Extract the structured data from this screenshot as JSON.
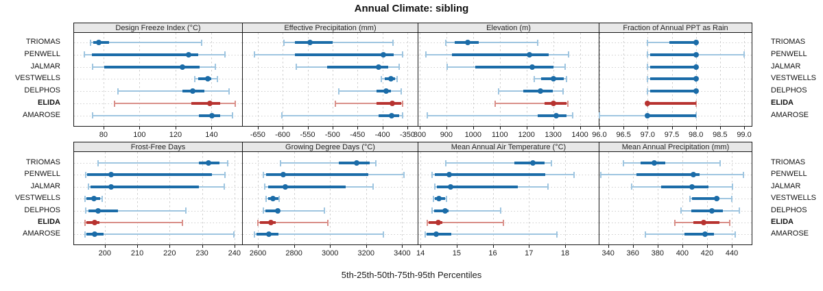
{
  "title": "Annual Climate: sibling",
  "caption": "5th-25th-50th-75th-95th Percentiles",
  "locations": [
    "TRIOMAS",
    "PENWELL",
    "JALMAR",
    "VESTWELLS",
    "DELPHOS",
    "ELIDA",
    "AMAROSE"
  ],
  "highlight_location": "ELIDA",
  "colors": {
    "blue": "#1b6ca8",
    "blue_light": "#9ec5e0",
    "red": "#b73330",
    "red_light": "#d98f89",
    "grid": "#cdcdcd",
    "header_bg": "#e8e8e8",
    "border": "#141414",
    "text": "#1a1a1a"
  },
  "chart_data": [
    {
      "type": "percentile_dot_whisker",
      "title": "Design Freeze Index (°C)",
      "row": 0,
      "col": 0,
      "percentiles": [
        5,
        25,
        50,
        75,
        95
      ],
      "xlim": [
        63.7,
        157.7
      ],
      "ticks": [
        80,
        100,
        120,
        140
      ],
      "tick_labels": [
        "80",
        "100",
        "120",
        "140"
      ],
      "values": [
        [
          73,
          74.5,
          77.5,
          83,
          134.3
        ],
        [
          69.5,
          73.5,
          127.3,
          132.5,
          147.3
        ],
        [
          74,
          80.5,
          124,
          133.4,
          142.2
        ],
        [
          130.5,
          132.4,
          137.9,
          139.7,
          143.4
        ],
        [
          88,
          124,
          129.5,
          135.9,
          149.8
        ],
        [
          86.1,
          128.9,
          139,
          144.8,
          153
        ],
        [
          74,
          133,
          140.3,
          144.8,
          151.7
        ]
      ]
    },
    {
      "type": "percentile_dot_whisker",
      "title": "Effective Precipitation (mm)",
      "row": 0,
      "col": 1,
      "percentiles": [
        5,
        25,
        50,
        75,
        95
      ],
      "xlim": [
        -680,
        -328
      ],
      "ticks": [
        -650,
        -600,
        -550,
        -500,
        -450,
        -400,
        -350
      ],
      "tick_labels": [
        "-650",
        "-600",
        "-550",
        "-500",
        "-450",
        "-400",
        "-350"
      ],
      "values": [
        [
          -597,
          -576,
          -545,
          -500,
          -379
        ],
        [
          -657,
          -575,
          -398,
          -377,
          -360
        ],
        [
          -573,
          -511,
          -408,
          -389,
          -366
        ],
        [
          -402,
          -395,
          -383,
          -375,
          -371
        ],
        [
          -487,
          -412,
          -392,
          -383,
          -362
        ],
        [
          -495,
          -412,
          -380,
          -363,
          -359
        ],
        [
          -601,
          -408,
          -381,
          -366,
          -360
        ]
      ]
    },
    {
      "type": "percentile_dot_whisker",
      "title": "Elevation (m)",
      "row": 0,
      "col": 2,
      "percentiles": [
        5,
        25,
        50,
        75,
        95
      ],
      "xlim": [
        795,
        1473
      ],
      "ticks": [
        800,
        900,
        1000,
        1100,
        1200,
        1300,
        1400
      ],
      "tick_labels": [
        "800",
        "900",
        "1000",
        "1100",
        "1200",
        "1300",
        "1400"
      ],
      "values": [
        [
          898,
          932,
          979,
          1021,
          1241
        ],
        [
          822,
          922,
          1211,
          1283,
          1357
        ],
        [
          902,
          1009,
          1221,
          1302,
          1344
        ],
        [
          1228,
          1255,
          1302,
          1340,
          1350
        ],
        [
          1095,
          1189,
          1253,
          1298,
          1338
        ],
        [
          1083,
          1268,
          1300,
          1349,
          1355
        ],
        [
          829,
          1242,
          1310,
          1349,
          1374
        ]
      ]
    },
    {
      "type": "percentile_dot_whisker",
      "title": "Fraction of Annual PPT as Rain",
      "row": 0,
      "col": 3,
      "percentiles": [
        5,
        25,
        50,
        75,
        95
      ],
      "xlim": [
        96.0,
        99.17
      ],
      "ticks": [
        96.0,
        96.5,
        97.0,
        97.5,
        98.0,
        98.5,
        99.0
      ],
      "tick_labels": [
        "96.0",
        "96.5",
        "97.0",
        "97.5",
        "98.0",
        "98.5",
        "99.0"
      ],
      "values": [
        [
          97,
          97.45,
          98,
          98,
          98
        ],
        [
          97,
          97.05,
          98,
          98,
          99
        ],
        [
          97,
          97.05,
          98,
          98,
          98
        ],
        [
          97,
          97.05,
          98,
          98,
          98
        ],
        [
          97,
          97.05,
          98,
          98,
          98
        ],
        [
          97,
          97,
          97,
          98,
          98
        ],
        [
          96,
          97,
          97,
          98,
          98
        ]
      ]
    },
    {
      "type": "percentile_dot_whisker",
      "title": "Frost-Free Days",
      "row": 1,
      "col": 0,
      "percentiles": [
        5,
        25,
        50,
        75,
        95
      ],
      "xlim": [
        190.5,
        242.8
      ],
      "ticks": [
        200,
        210,
        220,
        230,
        240
      ],
      "tick_labels": [
        "200",
        "210",
        "220",
        "230",
        "240"
      ],
      "values": [
        [
          198,
          229,
          232,
          235.4,
          238
        ],
        [
          194,
          194.5,
          202,
          233,
          237
        ],
        [
          195,
          195.5,
          202,
          229,
          236.8
        ],
        [
          193.8,
          194.4,
          196.7,
          198.6,
          199.1
        ],
        [
          194,
          195,
          198,
          204,
          225
        ],
        [
          193.8,
          194.3,
          196.8,
          198.4,
          223.9
        ],
        [
          193.8,
          194.4,
          196.8,
          199.6,
          239.9
        ]
      ]
    },
    {
      "type": "percentile_dot_whisker",
      "title": "Growing Degree Days (°C)",
      "row": 1,
      "col": 1,
      "percentiles": [
        5,
        25,
        50,
        75,
        95
      ],
      "xlim": [
        2516,
        3490
      ],
      "ticks": [
        2600,
        2800,
        3000,
        3200,
        3400
      ],
      "tick_labels": [
        "2600",
        "2800",
        "3000",
        "3200",
        "3400"
      ],
      "values": [
        [
          2724,
          3047,
          3149,
          3219,
          3254
        ],
        [
          2630,
          2645,
          2740,
          3212,
          3409
        ],
        [
          2639,
          2655,
          2750,
          3085,
          3238
        ],
        [
          2644,
          2655,
          2682,
          2712,
          2716
        ],
        [
          2629,
          2642,
          2710,
          2722,
          2969
        ],
        [
          2600,
          2610,
          2671,
          2699,
          2988
        ],
        [
          2581,
          2591,
          2661,
          2712,
          3295
        ]
      ]
    },
    {
      "type": "percentile_dot_whisker",
      "title": "Mean Annual Air Temperature (°C)",
      "row": 1,
      "col": 2,
      "percentiles": [
        5,
        25,
        50,
        75,
        95
      ],
      "xlim": [
        13.94,
        18.95
      ],
      "ticks": [
        14,
        15,
        16,
        17,
        18
      ],
      "tick_labels": [
        "14",
        "15",
        "16",
        "17",
        "18"
      ],
      "values": [
        [
          14.69,
          16.6,
          17.1,
          17.43,
          17.62
        ],
        [
          14.32,
          14.4,
          14.79,
          17.46,
          18.25
        ],
        [
          14.39,
          14.45,
          14.84,
          16.7,
          17.52
        ],
        [
          14.36,
          14.4,
          14.51,
          14.68,
          14.72
        ],
        [
          14.32,
          14.38,
          14.68,
          14.77,
          16.21
        ],
        [
          14.18,
          14.22,
          14.49,
          14.6,
          16.3
        ],
        [
          14.13,
          14.17,
          14.44,
          14.86,
          17.78
        ]
      ]
    },
    {
      "type": "percentile_dot_whisker",
      "title": "Mean Annual Precipitation (mm)",
      "row": 1,
      "col": 3,
      "percentiles": [
        5,
        25,
        50,
        75,
        95
      ],
      "xlim": [
        333,
        456.6
      ],
      "ticks": [
        340,
        360,
        380,
        400,
        420,
        440
      ],
      "tick_labels": [
        "340",
        "360",
        "380",
        "400",
        "420",
        "440"
      ],
      "values": [
        [
          352.5,
          366,
          377.4,
          386,
          430.8
        ],
        [
          334,
          363,
          409,
          413.7,
          449.6
        ],
        [
          359,
          383,
          408,
          421,
          440.4
        ],
        [
          406,
          408,
          428,
          430.2,
          440
        ],
        [
          399,
          407,
          424,
          433,
          446
        ],
        [
          394,
          409,
          417.3,
          430.2,
          438.5
        ],
        [
          370,
          402,
          418.6,
          425.6,
          443
        ]
      ]
    }
  ]
}
